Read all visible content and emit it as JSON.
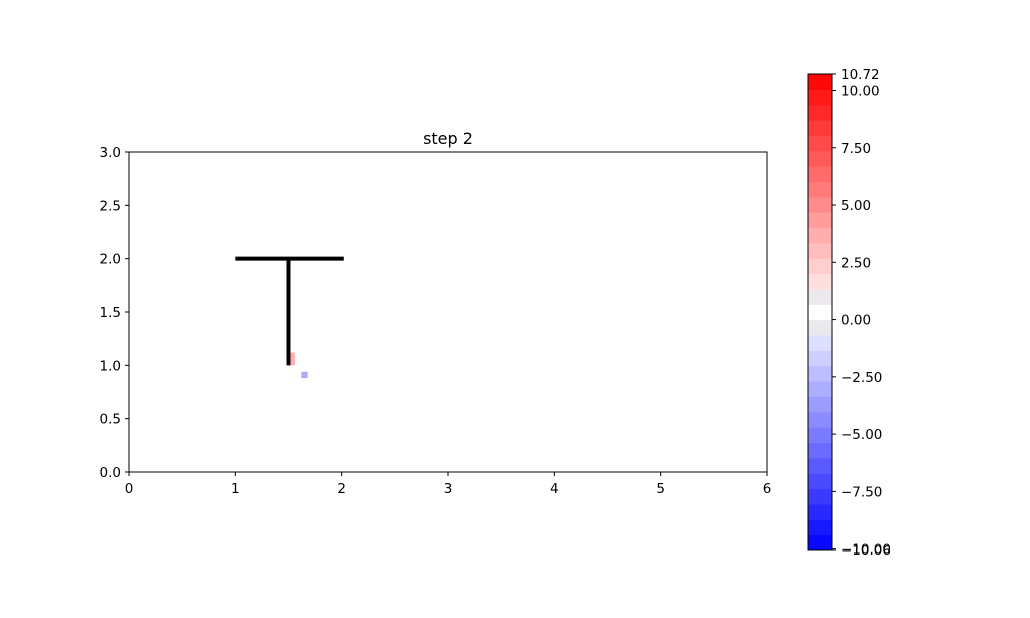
{
  "chart_data": {
    "type": "heatmap",
    "title": "step 2",
    "xlabel": "",
    "ylabel": "",
    "xlim": [
      0,
      6
    ],
    "ylim": [
      0,
      3
    ],
    "x_ticks": [
      "0",
      "1",
      "2",
      "3",
      "4",
      "5",
      "6"
    ],
    "y_ticks": [
      "0.0",
      "0.5",
      "1.0",
      "1.5",
      "2.0",
      "2.5",
      "3.0"
    ],
    "grid": false,
    "cell_size": 0.06,
    "cells": [
      {
        "x": 1.38,
        "y": 1.1,
        "w": 0.24,
        "h": 0.22,
        "value": 0.4
      },
      {
        "x": 1.44,
        "y": 0.98,
        "w": 0.12,
        "h": 0.08,
        "value": 0.4
      },
      {
        "x": 1.5,
        "y": 1.0,
        "w": 0.06,
        "h": 0.12,
        "value": 4.0
      },
      {
        "x": 1.62,
        "y": 0.88,
        "w": 0.06,
        "h": 0.06,
        "value": -3.2
      },
      {
        "x": 1.56,
        "y": 0.78,
        "w": 0.18,
        "h": 0.1,
        "value": 0.4
      },
      {
        "x": 1.68,
        "y": 0.84,
        "w": 0.12,
        "h": 0.06,
        "value": 0.4
      },
      {
        "x": 1.62,
        "y": 0.74,
        "w": 0.06,
        "h": 0.04,
        "value": 0.4
      },
      {
        "x": 1.68,
        "y": 0.94,
        "w": 0.06,
        "h": 0.06,
        "value": 0.4
      }
    ],
    "structure": {
      "color": "#000000",
      "segments": [
        {
          "x1": 1.0,
          "y1": 2.0,
          "x2": 2.02,
          "y2": 2.0
        },
        {
          "x1": 1.5,
          "y1": 2.0,
          "x2": 1.5,
          "y2": 1.0
        }
      ]
    },
    "colorbar": {
      "cmap": "bwr",
      "min": -10.06,
      "max": 10.72,
      "levels": 31,
      "tick_values": [
        10.72,
        10.0,
        7.5,
        5.0,
        2.5,
        0.0,
        -2.5,
        -5.0,
        -7.5,
        -10.0,
        -10.06
      ],
      "tick_labels": [
        "10.72",
        "10.00",
        "7.50",
        "5.00",
        "2.50",
        "0.00",
        "−2.50",
        "−5.00",
        "−7.50",
        "−10.00",
        "−10.06"
      ]
    }
  }
}
